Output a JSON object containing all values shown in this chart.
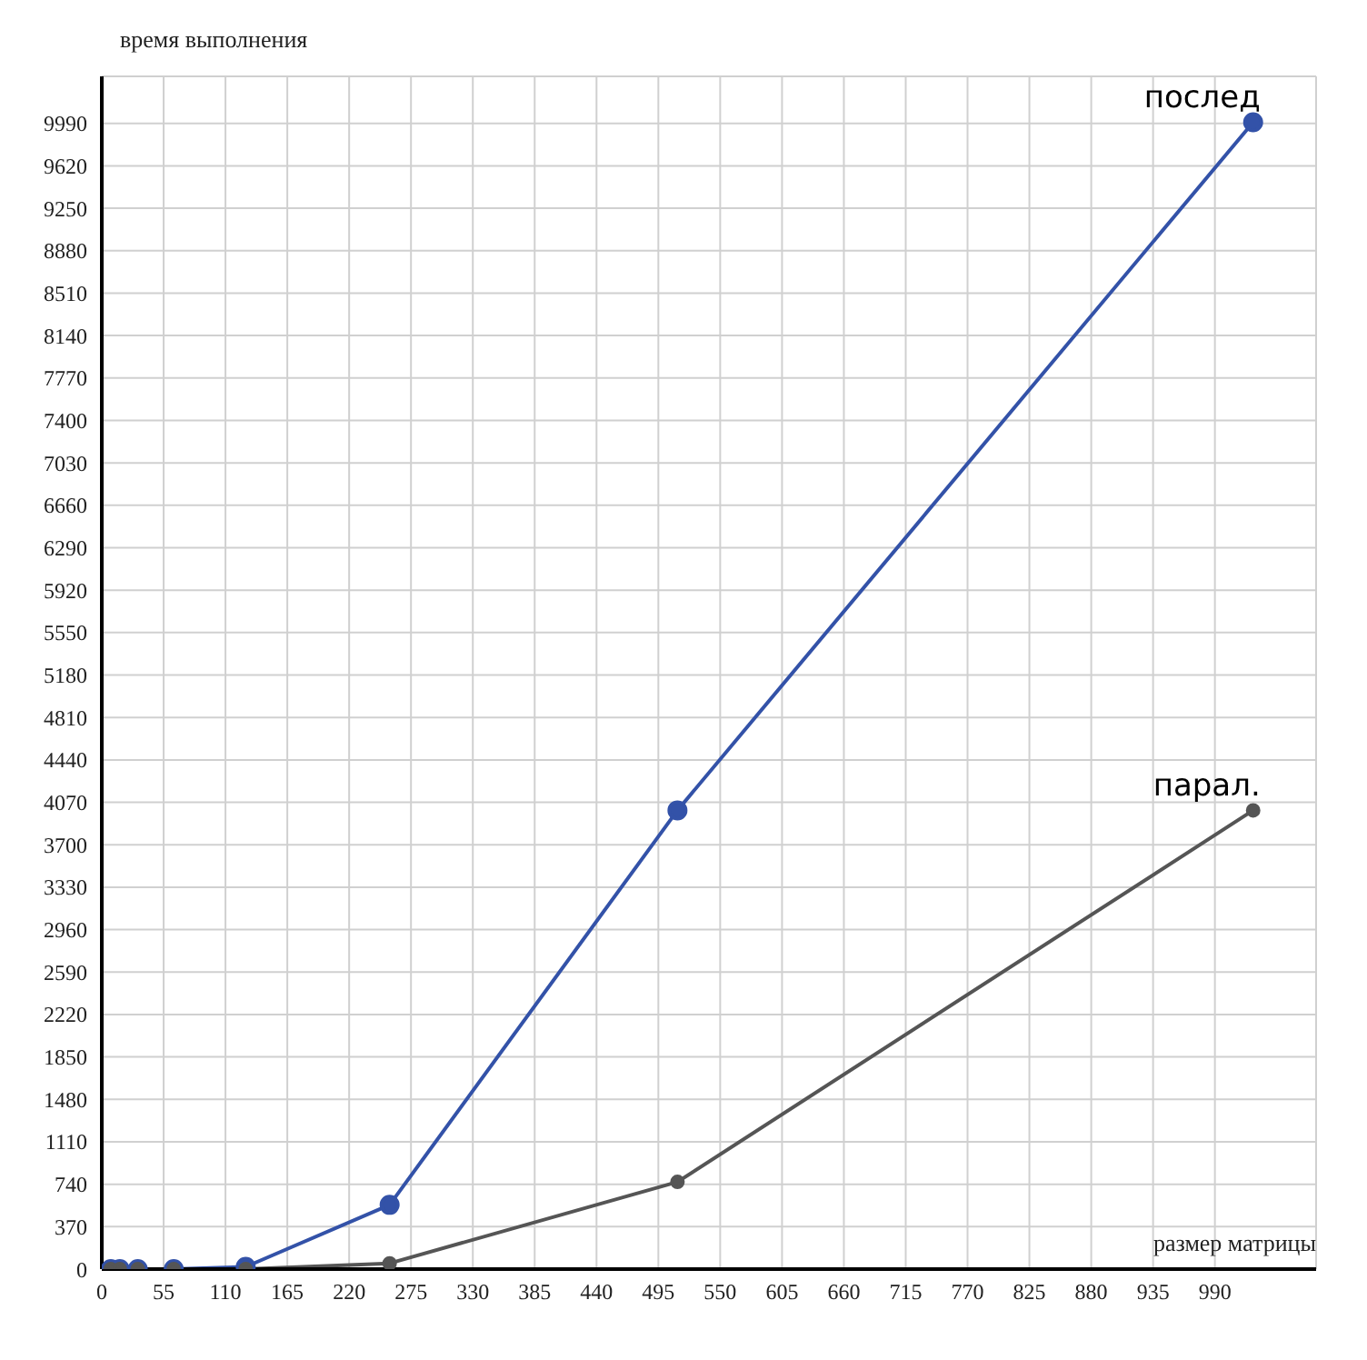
{
  "chart_data": {
    "type": "line",
    "xlabel": "размер матрицы",
    "ylabel": "время выполнения",
    "x": [
      8,
      16,
      32,
      64,
      128,
      256,
      512,
      1024
    ],
    "series": [
      {
        "name": "послед",
        "color": "#3352a8",
        "values": [
          0,
          0,
          0,
          0,
          20,
          560,
          4000,
          10000
        ]
      },
      {
        "name": "парал.",
        "color": "#555555",
        "values": [
          0,
          0,
          0,
          0,
          0,
          50,
          760,
          4000
        ]
      }
    ],
    "xlim": [
      0,
      1080
    ],
    "xticks": [
      0,
      55,
      110,
      165,
      220,
      275,
      330,
      385,
      440,
      495,
      550,
      605,
      660,
      715,
      770,
      825,
      880,
      935,
      990
    ],
    "ylim": [
      0,
      10400
    ],
    "yticks": [
      0,
      370,
      740,
      1110,
      1480,
      1850,
      2220,
      2590,
      2960,
      3330,
      3700,
      4070,
      4440,
      4810,
      5180,
      5550,
      5920,
      6290,
      6660,
      7030,
      7400,
      7770,
      8140,
      8510,
      8880,
      9250,
      9620,
      9990
    ],
    "grid": true,
    "legend": false,
    "marker": "circle",
    "line_style": "solid"
  }
}
